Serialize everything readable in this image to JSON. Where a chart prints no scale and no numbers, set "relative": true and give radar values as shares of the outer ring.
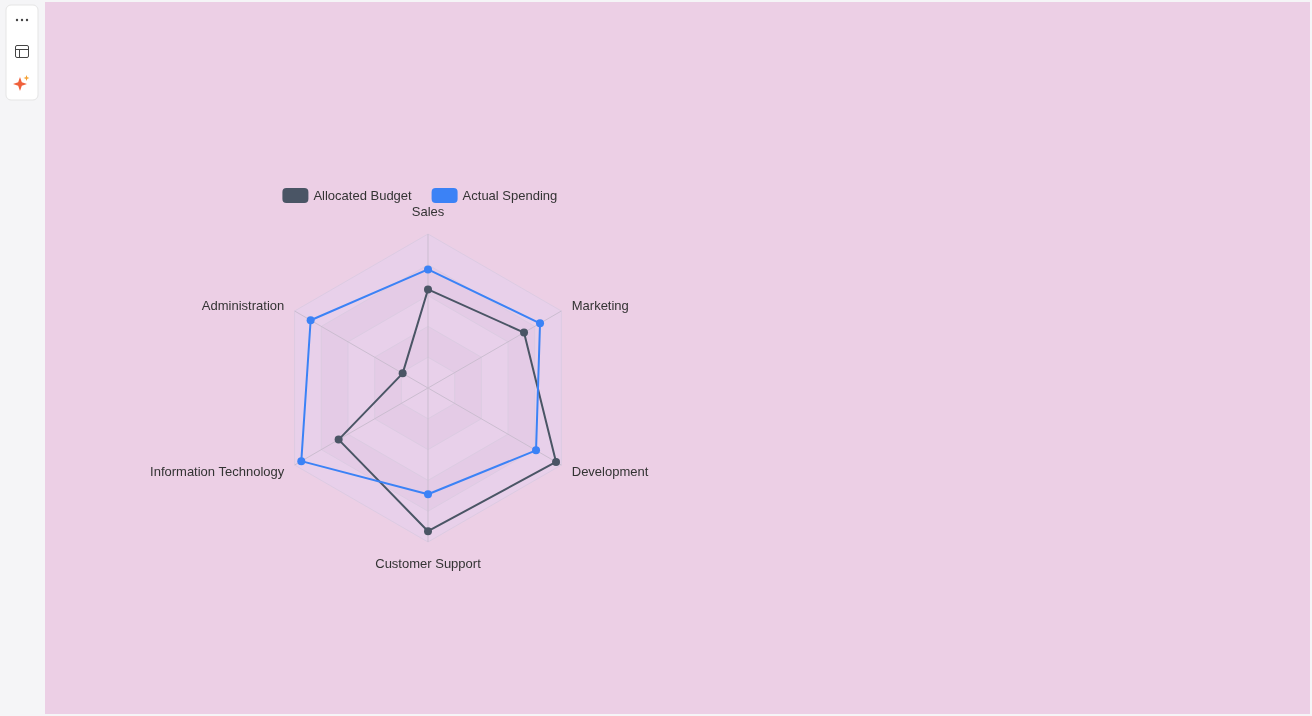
{
  "chart_data": {
    "type": "radar",
    "relative": true,
    "categories": [
      "Sales",
      "Marketing",
      "Development",
      "Customer Support",
      "Information Technology",
      "Administration"
    ],
    "series": [
      {
        "name": "Allocated Budget",
        "color": "#4a5565",
        "values": [
          0.64,
          0.72,
          0.96,
          0.93,
          0.67,
          0.19
        ]
      },
      {
        "name": "Actual Spending",
        "color": "#3b82f6",
        "values": [
          0.77,
          0.84,
          0.81,
          0.69,
          0.95,
          0.88
        ]
      }
    ],
    "legend": "top",
    "grid": true,
    "marker": "circle"
  }
}
